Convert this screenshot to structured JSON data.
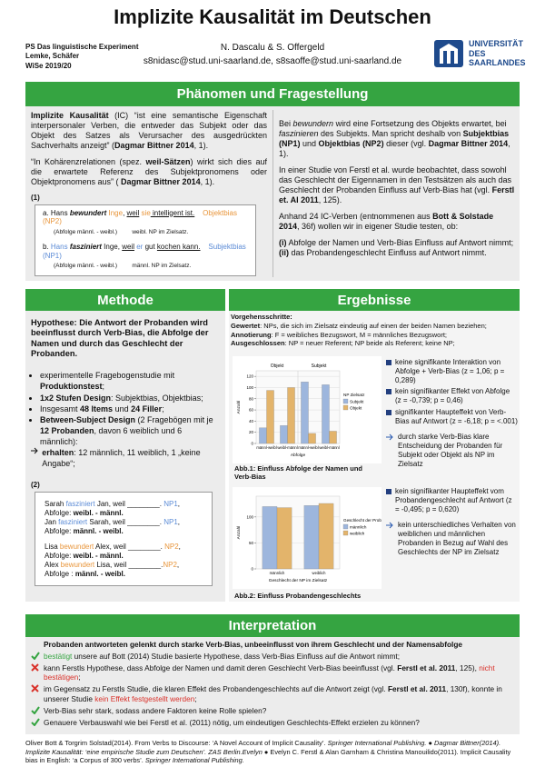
{
  "header": {
    "course": [
      "PS Das linguistische Experiment",
      "Lemke, Schäfer",
      "WiSe 2019/20"
    ],
    "title": "Implizite Kausalität im Deutschen",
    "authors": "N. Dascalu & S. Offergeld",
    "emails": "s8nidasc@stud.uni-saarland.de, s8saoffe@stud.uni-saarland.de",
    "logo": [
      "UNIVERSITÄT",
      "DES",
      "SAARLANDES"
    ]
  },
  "phenomenon": {
    "title": "Phänomen und Fragestellung",
    "left": [
      [
        "Implizite Kausalität",
        " (IC) “ist eine semantische Eigenschaft interpersonaler Verben, die entweder das Subjekt oder das Objekt des Satzes als Verursacher des ausgedrückten Sachverhalts anzeigt” (",
        "Dagmar Bittner 2014",
        ", 1)."
      ],
      [
        "“In Kohärenzrelationen (spez. ",
        "weil-Sätzen",
        ") wirkt sich dies auf die erwartete Referenz des Subjektpronomens oder Objektpronomens aus” ( ",
        "Dagmar Bittner 2014",
        ", 1)."
      ]
    ],
    "example": {
      "label": "(1)",
      "items": [
        {
          "runs": [
            "a.",
            "Hans ",
            "bewundert",
            " ",
            "Inge",
            ", ",
            "weil",
            " ",
            "sie",
            " intelligent ist."
          ],
          "bias": "Objektbias (NP2)",
          "gloss": [
            "(Abfolge männl. - weibl.)",
            "weibl. NP im  Zielsatz."
          ]
        },
        {
          "runs": [
            "b.",
            "Hans",
            " ",
            "fasziniert",
            " Inge, ",
            "weil",
            " ",
            "er",
            " gut ",
            "kochen kann."
          ],
          "bias": "Subjektbias (NP1)",
          "gloss": [
            "(Abfolge männl. - weibl.)",
            "männl. NP im  Zielsatz."
          ]
        }
      ]
    },
    "right": [
      [
        "Bei ",
        "bewundern",
        " wird eine Fortsetzung des Objekts erwartet, bei ",
        "faszinieren",
        " des Subjekts. Man spricht deshalb von ",
        "Subjektbias (NP1)",
        " und ",
        "Objektbias (NP2)",
        " dieser (vgl. ",
        "Dagmar Bittner 2014",
        ", 1)."
      ],
      [
        "In einer Studie von Ferstl et al. wurde beobachtet, dass sowohl das Geschlecht der Eigennamen in den Testsätzen als auch das Geschlecht der Probanden Einfluss auf Verb-Bias hat (vgl. ",
        "Ferstl et. Al 2011",
        ", 125)."
      ],
      [
        "Anhand 24 IC-Verben (entnommenen aus ",
        "Bott & Solstade 2014",
        ", 36f) wollen  wir in eigener Studie testen, ob:"
      ]
    ],
    "questions": [
      [
        "(i)",
        " Abfolge der Namen und Verb-Bias Einfluss auf Antwort nimmt;"
      ],
      [
        "(ii)",
        " das Probandengeschlecht Einfluss auf Antwort nimmt."
      ]
    ]
  },
  "method": {
    "title": "Methode",
    "hypothesis": "Hypothese: Die Antwort der Probanden wird beeinflusst durch Verb-Bias, die Abfolge der Namen und durch das Geschlecht der Probanden.",
    "bullets": [
      [
        "experimentelle Fragebogenstudie mit ",
        "Produktionstest",
        ";"
      ],
      [
        "1x2 Stufen Design",
        ": Subjektbias, Objektbias;"
      ],
      [
        "Insgesamt ",
        "48 Items",
        " und ",
        "24 Filler",
        ";"
      ],
      [
        "Between-Subject Design",
        " (2 Fragebögen mit je ",
        "12 Probanden",
        ", davon 6 weiblich und  6 männlich):"
      ]
    ],
    "received": [
      "erhalten",
      ": 12 männlich, 11 weiblich, 1 „keine Angabe“;"
    ],
    "example": {
      "label": "(2)",
      "items": [
        [
          "Sarah ",
          "fasziniert",
          " Jan, weil ________. ",
          "NP1",
          ", Abfolge: ",
          "weibl. - männl."
        ],
        [
          "Jan ",
          "fasziniert",
          " Sarah, weil ________. ",
          "NP1",
          ", Abfolge: ",
          "männl. -  weibl."
        ],
        [
          "Lisa ",
          "bewundert",
          " Alex, weil ________. ",
          "NP2",
          ", Abfolge: ",
          "weibl. - männl."
        ],
        [
          "Alex ",
          "bewundert",
          " Lisa, weil ________.",
          "NP2",
          ", Abfolge : ",
          "männl. -  weibl."
        ]
      ]
    }
  },
  "results": {
    "title": "Ergebnisse",
    "steps_title": "Vorgehensschritte:",
    "steps": [
      [
        "Gewertet",
        ": NPs, die sich im Zielsatz eindeutig auf einen der beiden Namen beziehen;"
      ],
      [
        "Annotierung",
        ": F = weibliches Bezugswort, M = männliches Bezugswort;"
      ],
      [
        "Ausgeschlossen",
        ": NP = neuer Referent; NP  beide als Referent; keine NP;"
      ]
    ],
    "figure1": {
      "chart": {
        "type": "bar",
        "panels": [
          "Objekt",
          "Subjekt"
        ],
        "categories": [
          "männl-weibl",
          "weibl-männl",
          "männl-weibl",
          "weibl-männl"
        ],
        "xlabel": "Abfolge",
        "ylabel": "Anzahl",
        "legend_title": "NP Zielsatz",
        "ylim": [
          0,
          130
        ],
        "yticks": [
          0,
          20,
          40,
          60,
          80,
          100,
          120
        ],
        "grid": true,
        "series": [
          {
            "name": "Subjekt",
            "color": "#9db6dd",
            "values": [
              28,
              32,
              110,
              105
            ]
          },
          {
            "name": "Objekt",
            "color": "#e3b46b",
            "values": [
              95,
              100,
              18,
              22
            ]
          }
        ]
      },
      "caption": "Abb.1: Einfluss Abfolge der Namen und Verb-Bias"
    },
    "findings1": [
      "keine signifikante Interaktion von Abfolge + Verb-Bias (z = 1,06; p = 0,289)",
      "kein signifikanter Effekt von Abfolge (z = -0,739; p = 0,46)",
      "signifikanter Haupteffekt von Verb-Bias auf Antwort (z = -6,18; p = <.001)"
    ],
    "conclusion1": "durch starke Verb-Bias klare Entscheidung der Probanden für Subjekt oder Objekt als NP im Zielsatz",
    "figure2": {
      "chart": {
        "type": "bar",
        "categories": [
          "männlich",
          "weiblich"
        ],
        "xlabel": "Geschlecht der NP im Zielsatz",
        "ylabel": "Anzahl",
        "legend_title": "Geschlecht der Probanden",
        "ylim": [
          0,
          140
        ],
        "yticks": [
          0,
          50,
          100
        ],
        "grid": true,
        "series": [
          {
            "name": "männlich",
            "color": "#9db6dd",
            "values": [
              120,
              122
            ]
          },
          {
            "name": "weiblich",
            "color": "#e3b46b",
            "values": [
              118,
              126
            ]
          }
        ]
      },
      "caption": "Abb.2: Einfluss Probandengeschlechts"
    },
    "findings2": [
      "kein signifikanter Haupteffekt vom Probandengeschlecht auf Antwort (z = -0,495; p = 0,620)"
    ],
    "conclusion2": "kein unterschiedliches Verhalten von weiblichen und männlichen Probanden in Bezug auf Wahl des Geschlechts der NP im Zielsatz"
  },
  "interpretation": {
    "title": "Interpretation",
    "summary": "Probanden antworteten gelenkt durch starke Verb-Bias, unbeeinflusst von ihrem Geschlecht und der Namensabfolge",
    "items": [
      [
        "bestätigt",
        " unsere auf Bott (2014) Studie basierte Hypothese, dass Verb-Bias Einfluss auf die Antwort nimmt;"
      ],
      [
        "kann Ferstls Hypothese, dass Abfolge der Namen und damit deren Geschlecht Verb-Bias beeinflusst (vgl. ",
        "Ferstl et al. 2011",
        ", 125), ",
        "nicht bestätigen",
        ";"
      ],
      [
        "im Gegensatz zu Ferstls Studie, die klaren Effekt des Probandengeschlechts auf die Antwort zeigt (vgl. ",
        "Ferstl et al. 2011",
        ", 130f), konnte in unserer Studie ",
        "kein Effekt festgestellt werden",
        ";"
      ],
      [
        "Verb-Bias sehr stark, sodass andere Faktoren keine Rolle spielen?"
      ],
      [
        "Genauere Verbauswahl wie bei Ferstl et al. (2011) nötig, um eindeutigen Geschlechts-Effekt erzielen zu können?"
      ]
    ]
  },
  "references": [
    "Oliver Bott & Torgrim Solstad(2014). From Verbs to Discourse: ‘A Novel Account of Implicit Causality’. ",
    "Springer International Publishing.",
    " ● ",
    "Dagmar Bittner(2014). Implizite Kausalität: ‘eine empirische Studie zum Deutschen’. ZAS Berlin.Evelyn",
    " ● Evelyn C. Ferstl & Alan Garnham & Christina Manouilido(2011). Implicit Causality bias in English: ‘a Corpus of 300 verbs’. ",
    " Springer International Publishing."
  ]
}
